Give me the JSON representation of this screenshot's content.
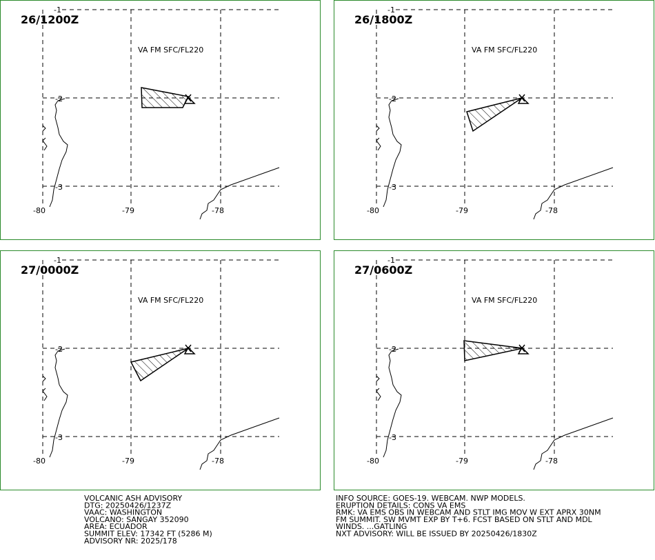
{
  "panels": [
    {
      "time": "26/1200Z",
      "label": "VA FM SFC/FL220"
    },
    {
      "time": "26/1800Z",
      "label": "VA FM SFC/FL220"
    },
    {
      "time": "27/0000Z",
      "label": "VA FM SFC/FL220"
    },
    {
      "time": "27/0600Z",
      "label": "VA FM SFC/FL220"
    }
  ],
  "lat_labels": [
    "-1",
    "-2",
    "-3"
  ],
  "lon_labels": [
    "-80",
    "-79",
    "-78"
  ],
  "advisory_left": [
    "VOLCANIC ASH ADVISORY",
    "DTG: 20250426/1237Z",
    "VAAC: WASHINGTON",
    "VOLCANO: SANGAY 352090",
    "AREA: ECUADOR",
    "SUMMIT ELEV: 17342 FT (5286 M)",
    "ADVISORY NR: 2025/178"
  ],
  "advisory_right": [
    "INFO SOURCE: GOES-19. WEBCAM. NWP MODELS.",
    "ERUPTION DETAILS: CONS VA EMS",
    "RMK: VA EMS OBS IN WEBCAM AND STLT IMG MOV W EXT APRX 30NM",
    "FM SUMMIT. SW MVMT EXP BY T+6. FCST BASED ON STLT AND MDL",
    "WINDS. ...GATLING",
    "NXT ADVISORY: WILL BE ISSUED BY 20250426/1830Z"
  ]
}
